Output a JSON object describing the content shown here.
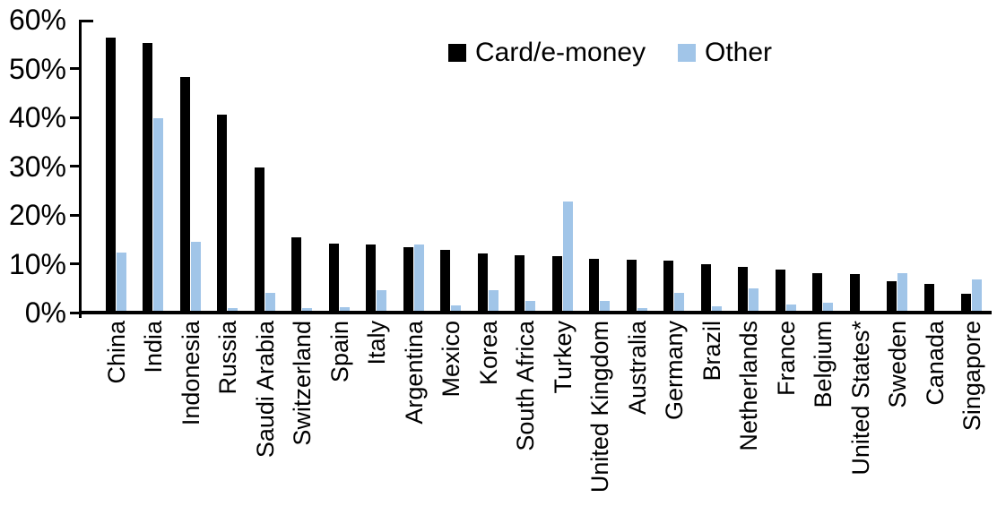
{
  "chart_data": {
    "type": "bar",
    "title": "",
    "xlabel": "",
    "ylabel": "",
    "ylim": [
      0,
      60
    ],
    "ytick_step": 10,
    "ytick_labels": [
      "0%",
      "10%",
      "20%",
      "30%",
      "40%",
      "50%",
      "60%"
    ],
    "grid": false,
    "legend_position": "top-center",
    "categories": [
      "China",
      "India",
      "Indonesia",
      "Russia",
      "Saudi Arabia",
      "Switzerland",
      "Spain",
      "Italy",
      "Argentina",
      "Mexico",
      "Korea",
      "South Africa",
      "Turkey",
      "United Kingdom",
      "Australia",
      "Germany",
      "Brazil",
      "Netherlands",
      "France",
      "Belgium",
      "United States*",
      "Sweden",
      "Canada",
      "Singapore"
    ],
    "series": [
      {
        "name": "Card/e-money",
        "color": "#000000",
        "values": [
          56.4,
          55.2,
          48.3,
          40.6,
          29.8,
          15.5,
          14.1,
          13.9,
          13.4,
          12.8,
          12.1,
          11.8,
          11.6,
          11.1,
          10.8,
          10.7,
          10.0,
          9.4,
          8.8,
          8.1,
          7.8,
          6.4,
          5.9,
          3.9
        ]
      },
      {
        "name": "Other",
        "color": "#A1C5E8",
        "values": [
          12.3,
          39.8,
          14.5,
          1.0,
          4.0,
          0.9,
          1.1,
          4.6,
          13.9,
          1.4,
          4.5,
          2.4,
          22.7,
          2.4,
          1.0,
          4.0,
          1.2,
          5.0,
          1.6,
          2.1,
          0.3,
          8.0,
          0.0,
          6.7
        ]
      }
    ]
  },
  "colors": {
    "axis": "#000000",
    "background": "#FFFFFF",
    "series_card": "#000000",
    "series_other": "#A1C5E8"
  }
}
